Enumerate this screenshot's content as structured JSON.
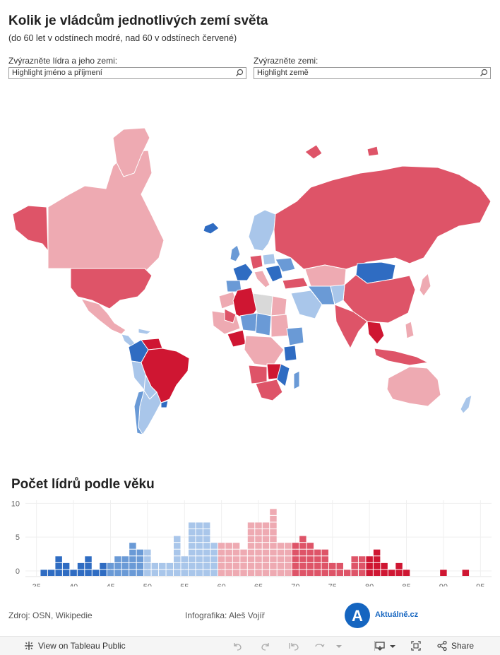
{
  "header": {
    "title": "Kolik je vládcům jednotlivých zemí světa",
    "subtitle": "(do 60 let v odstínech modré, nad 60 v odstínech červené)"
  },
  "filters": {
    "leader": {
      "label": "Zvýrazněte lídra a jeho zemi:",
      "placeholder": "Highlight jméno a příjmení"
    },
    "country": {
      "label": "Zvýrazněte zemi:",
      "placeholder": "Highlight země"
    }
  },
  "colors": {
    "dark_blue": "#2f6cc2",
    "mid_blue": "#6a9ad6",
    "light_blue": "#a9c6ea",
    "light_red": "#eeaab2",
    "mid_red": "#de5468",
    "dark_red": "#cf1632",
    "empty_land": "#d9d9d9"
  },
  "chart_data": {
    "type": "bar",
    "title": "Počet lídrů podle věku",
    "x_ticks": [
      35,
      40,
      45,
      50,
      55,
      60,
      65,
      70,
      75,
      80,
      85,
      90,
      95
    ],
    "y_ticks": [
      0,
      5,
      10
    ],
    "xlim": [
      34,
      97
    ],
    "ylim": [
      0,
      10
    ],
    "grid": true,
    "x": [
      36,
      37,
      38,
      39,
      40,
      41,
      42,
      43,
      44,
      45,
      46,
      47,
      48,
      49,
      50,
      51,
      52,
      53,
      54,
      55,
      56,
      57,
      58,
      59,
      60,
      61,
      62,
      63,
      64,
      65,
      66,
      67,
      68,
      69,
      70,
      71,
      72,
      73,
      74,
      75,
      76,
      77,
      78,
      79,
      80,
      81,
      82,
      83,
      84,
      85,
      90,
      93
    ],
    "values": [
      1,
      1,
      3,
      2,
      1,
      2,
      3,
      1,
      2,
      2,
      3,
      3,
      5,
      4,
      4,
      2,
      2,
      2,
      6,
      3,
      8,
      8,
      8,
      5,
      5,
      5,
      5,
      4,
      8,
      8,
      8,
      10,
      5,
      5,
      5,
      6,
      5,
      4,
      4,
      2,
      2,
      1,
      3,
      3,
      3,
      4,
      2,
      1,
      2,
      1,
      1,
      1
    ]
  },
  "footer": {
    "source": "Zdroj: OSN, Wikipedie",
    "credit": "Infografika: Aleš Vojíř",
    "logo_letter": "A",
    "logo_text": "Aktuálně.cz"
  },
  "toolbar": {
    "view_label": "View on Tableau Public",
    "share_label": "Share"
  }
}
